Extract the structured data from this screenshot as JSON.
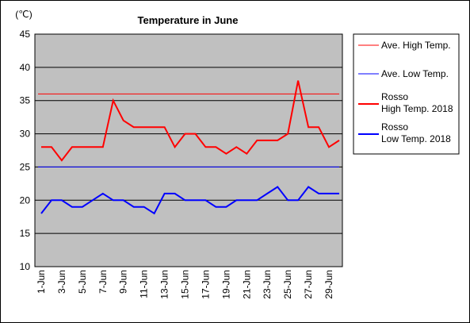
{
  "chart_data": {
    "type": "line",
    "title": "Temperature in June",
    "unit_label": "(℃)",
    "ylim": [
      10,
      45
    ],
    "y_ticks": [
      10,
      15,
      20,
      25,
      30,
      35,
      40,
      45
    ],
    "grid": true,
    "legend_position": "right",
    "x_tick_labels": [
      "1-Jun",
      "3-Jun",
      "5-Jun",
      "7-Jun",
      "9-Jun",
      "11-Jun",
      "13-Jun",
      "15-Jun",
      "17-Jun",
      "19-Jun",
      "21-Jun",
      "23-Jun",
      "25-Jun",
      "27-Jun",
      "29-Jun"
    ],
    "days": [
      1,
      2,
      3,
      4,
      5,
      6,
      7,
      8,
      9,
      10,
      11,
      12,
      13,
      14,
      15,
      16,
      17,
      18,
      19,
      20,
      21,
      22,
      23,
      24,
      25,
      26,
      27,
      28,
      29,
      30
    ],
    "series": [
      {
        "name": "Ave. High Temp.",
        "color": "#ff0000",
        "style": "thin",
        "values": [
          36,
          36,
          36,
          36,
          36,
          36,
          36,
          36,
          36,
          36,
          36,
          36,
          36,
          36,
          36,
          36,
          36,
          36,
          36,
          36,
          36,
          36,
          36,
          36,
          36,
          36,
          36,
          36,
          36,
          36
        ]
      },
      {
        "name": "Ave. Low Temp.",
        "color": "#0000ff",
        "style": "thin",
        "values": [
          25,
          25,
          25,
          25,
          25,
          25,
          25,
          25,
          25,
          25,
          25,
          25,
          25,
          25,
          25,
          25,
          25,
          25,
          25,
          25,
          25,
          25,
          25,
          25,
          25,
          25,
          25,
          25,
          25,
          25
        ]
      },
      {
        "name": "Rosso\nHigh Temp. 2018",
        "color": "#ff0000",
        "style": "thick",
        "values": [
          28,
          28,
          26,
          28,
          28,
          28,
          28,
          35,
          32,
          31,
          31,
          31,
          31,
          28,
          30,
          30,
          28,
          28,
          27,
          28,
          27,
          29,
          29,
          29,
          30,
          38,
          31,
          31,
          28,
          29
        ]
      },
      {
        "name": "Rosso\nLow Temp. 2018",
        "color": "#0000ff",
        "style": "thick",
        "values": [
          18,
          20,
          20,
          19,
          19,
          20,
          21,
          20,
          20,
          19,
          19,
          18,
          21,
          21,
          20,
          20,
          20,
          19,
          19,
          20,
          20,
          20,
          21,
          22,
          20,
          20,
          22,
          21,
          21,
          21
        ]
      }
    ]
  }
}
